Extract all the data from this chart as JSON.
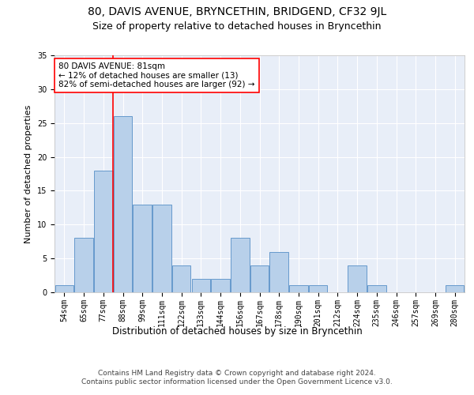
{
  "title1": "80, DAVIS AVENUE, BRYNCETHIN, BRIDGEND, CF32 9JL",
  "title2": "Size of property relative to detached houses in Bryncethin",
  "xlabel": "Distribution of detached houses by size in Bryncethin",
  "ylabel": "Number of detached properties",
  "bin_labels": [
    "54sqm",
    "65sqm",
    "77sqm",
    "88sqm",
    "99sqm",
    "111sqm",
    "122sqm",
    "133sqm",
    "144sqm",
    "156sqm",
    "167sqm",
    "178sqm",
    "190sqm",
    "201sqm",
    "212sqm",
    "224sqm",
    "235sqm",
    "246sqm",
    "257sqm",
    "269sqm",
    "280sqm"
  ],
  "bar_values": [
    1,
    8,
    18,
    26,
    13,
    13,
    4,
    2,
    2,
    8,
    4,
    6,
    1,
    1,
    0,
    4,
    1,
    0,
    0,
    0,
    1
  ],
  "bar_color": "#b8d0ea",
  "bar_edge_color": "#6699cc",
  "vline_bin_index": 2,
  "annotation_text": "80 DAVIS AVENUE: 81sqm\n← 12% of detached houses are smaller (13)\n82% of semi-detached houses are larger (92) →",
  "annotation_box_color": "white",
  "annotation_box_edge_color": "red",
  "ylim": [
    0,
    35
  ],
  "yticks": [
    0,
    5,
    10,
    15,
    20,
    25,
    30,
    35
  ],
  "plot_bg_color": "#e8eef8",
  "footer_text": "Contains HM Land Registry data © Crown copyright and database right 2024.\nContains public sector information licensed under the Open Government Licence v3.0.",
  "title1_fontsize": 10,
  "title2_fontsize": 9,
  "xlabel_fontsize": 8.5,
  "ylabel_fontsize": 8,
  "tick_fontsize": 7,
  "annot_fontsize": 7.5,
  "footer_fontsize": 6.5
}
